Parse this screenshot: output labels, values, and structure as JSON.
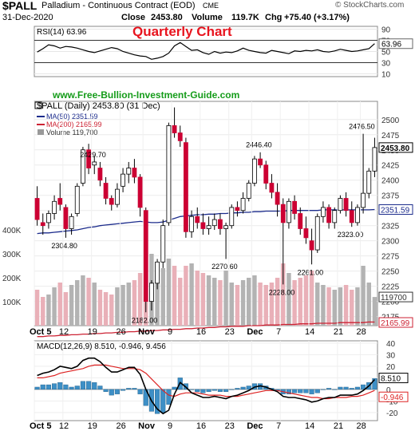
{
  "header": {
    "symbol": "$PALL",
    "name": "Palladium - Continuous Contract (EOD)",
    "exchange": "CME",
    "date": "31-Dec-2020",
    "close_label": "Close",
    "close": "2453.80",
    "volume_label": "Volume",
    "volume": "119.7K",
    "chg_label": "Chg",
    "chg": "+75.40 (+3.17%)",
    "credit": "© StockCharts.com"
  },
  "overlay": {
    "title": "Quarterly Chart",
    "website": "www.Free-Bullion-Investment-Guide.com"
  },
  "colors": {
    "up_candle": "#ffffff",
    "down_candle": "#cc0033",
    "ma50": "#1c2c8c",
    "ma200": "#cc2233",
    "title_red": "#e8141e",
    "website_green": "#159c1a",
    "volume_up": "#b3b3b3",
    "volume_down": "#e9b0b8",
    "macd_hist": "#3d8fc6",
    "macd_line": "#000000",
    "signal_line": "#dd2222"
  },
  "chart_data": {
    "type": "candlestick",
    "x_ticks": [
      "Oct 5",
      "12",
      "19",
      "26",
      "Nov",
      "9",
      "16",
      "23",
      "Dec",
      "7",
      "14",
      "21",
      "28"
    ],
    "rsi": {
      "legend": "RSI(14) 63.96",
      "y_ticks": [
        "90",
        "70",
        "50",
        "30",
        "10"
      ],
      "last_value": "63.96",
      "levels": [
        30,
        70
      ],
      "values": [
        49,
        55,
        62,
        60,
        56,
        59,
        58,
        56,
        53,
        50,
        48,
        51,
        54,
        57,
        55,
        50,
        47,
        44,
        42,
        41,
        36,
        38,
        41,
        47,
        60,
        66,
        59,
        52,
        53,
        48,
        45,
        50,
        47,
        49,
        48,
        51,
        56,
        52,
        50,
        48,
        47,
        52,
        50,
        48,
        46,
        51,
        50,
        52,
        51,
        53,
        50,
        49,
        51,
        54,
        52,
        50,
        51,
        53,
        55,
        63.96
      ]
    },
    "price": {
      "legend": "$PALL (Daily) 2453.80 (31 Dec)",
      "ma50_label": "MA(50) 2351.59",
      "ma200_label": "MA(200) 2165.99",
      "volume_label": "Volume 119,700",
      "y_ticks": [
        "2500",
        "2475",
        "2450",
        "2425",
        "2400",
        "2375",
        "2350",
        "2325",
        "2300",
        "2275",
        "2250",
        "2225",
        "2200",
        "2175"
      ],
      "ylim": [
        2160,
        2530
      ],
      "last_price_tag": "2453.80",
      "ma50_tag": "2351.59",
      "volume_tag": "119700",
      "ma200_tag": "2165.99",
      "volume_ticks": [
        "400K",
        "300K",
        "200K",
        "100K"
      ],
      "annotations": [
        {
          "label": "2304.80",
          "value": 2304.8,
          "index": 5
        },
        {
          "label": "2429.70",
          "value": 2429.7,
          "index": 10
        },
        {
          "label": "2182.00",
          "value": 2182.0,
          "index": 19
        },
        {
          "label": "2270.60",
          "value": 2270.6,
          "index": 33
        },
        {
          "label": "2446.40",
          "value": 2446.4,
          "index": 39
        },
        {
          "label": "2228.00",
          "value": 2228.0,
          "index": 43
        },
        {
          "label": "2261.00",
          "value": 2261.0,
          "index": 48
        },
        {
          "label": "2476.50",
          "value": 2476.5,
          "index": 57
        },
        {
          "label": "2323.00",
          "value": 2323.0,
          "index": 55
        }
      ],
      "ohlc": [
        [
          2370,
          2390,
          2325,
          2335
        ],
        [
          2330,
          2345,
          2310,
          2325
        ],
        [
          2330,
          2350,
          2320,
          2345
        ],
        [
          2345,
          2375,
          2335,
          2365
        ],
        [
          2370,
          2395,
          2350,
          2360
        ],
        [
          2355,
          2360,
          2305,
          2320
        ],
        [
          2320,
          2345,
          2310,
          2340
        ],
        [
          2345,
          2395,
          2340,
          2390
        ],
        [
          2395,
          2455,
          2390,
          2450
        ],
        [
          2450,
          2460,
          2410,
          2420
        ],
        [
          2425,
          2440,
          2410,
          2430
        ],
        [
          2420,
          2430,
          2390,
          2400
        ],
        [
          2395,
          2405,
          2360,
          2370
        ],
        [
          2370,
          2375,
          2350,
          2360
        ],
        [
          2360,
          2395,
          2355,
          2385
        ],
        [
          2390,
          2420,
          2380,
          2410
        ],
        [
          2410,
          2430,
          2395,
          2420
        ],
        [
          2420,
          2435,
          2395,
          2405
        ],
        [
          2405,
          2410,
          2340,
          2355
        ],
        [
          2350,
          2355,
          2182,
          2200
        ],
        [
          2200,
          2235,
          2185,
          2230
        ],
        [
          2230,
          2270,
          2220,
          2265
        ],
        [
          2265,
          2335,
          2255,
          2325
        ],
        [
          2330,
          2495,
          2325,
          2490
        ],
        [
          2490,
          2520,
          2470,
          2478
        ],
        [
          2478,
          2490,
          2455,
          2465
        ],
        [
          2462,
          2470,
          2305,
          2315
        ],
        [
          2315,
          2350,
          2305,
          2340
        ],
        [
          2340,
          2355,
          2320,
          2330
        ],
        [
          2330,
          2345,
          2310,
          2320
        ],
        [
          2320,
          2340,
          2310,
          2325
        ],
        [
          2325,
          2345,
          2318,
          2335
        ],
        [
          2335,
          2345,
          2310,
          2320
        ],
        [
          2320,
          2330,
          2270,
          2325
        ],
        [
          2325,
          2360,
          2320,
          2355
        ],
        [
          2355,
          2365,
          2340,
          2350
        ],
        [
          2350,
          2380,
          2345,
          2370
        ],
        [
          2370,
          2400,
          2365,
          2395
        ],
        [
          2395,
          2440,
          2390,
          2435
        ],
        [
          2435,
          2446,
          2420,
          2425
        ],
        [
          2425,
          2432,
          2385,
          2395
        ],
        [
          2395,
          2410,
          2370,
          2380
        ],
        [
          2380,
          2395,
          2340,
          2360
        ],
        [
          2360,
          2370,
          2228,
          2330
        ],
        [
          2330,
          2370,
          2320,
          2365
        ],
        [
          2365,
          2375,
          2335,
          2345
        ],
        [
          2345,
          2355,
          2310,
          2320
        ],
        [
          2320,
          2340,
          2295,
          2305
        ],
        [
          2300,
          2320,
          2261,
          2285
        ],
        [
          2285,
          2345,
          2280,
          2340
        ],
        [
          2340,
          2365,
          2330,
          2355
        ],
        [
          2355,
          2360,
          2320,
          2330
        ],
        [
          2330,
          2355,
          2320,
          2350
        ],
        [
          2350,
          2375,
          2345,
          2370
        ],
        [
          2370,
          2380,
          2340,
          2350
        ],
        [
          2350,
          2365,
          2323,
          2330
        ],
        [
          2330,
          2360,
          2325,
          2355
        ],
        [
          2355,
          2476.5,
          2345,
          2378.4
        ],
        [
          2378.4,
          2420,
          2370,
          2415
        ],
        [
          2415,
          2470,
          2405,
          2453.8
        ]
      ],
      "ma50": [
        2312,
        2313,
        2313,
        2314,
        2315,
        2316,
        2317,
        2318,
        2320,
        2322,
        2323,
        2325,
        2326,
        2327,
        2328,
        2329,
        2330,
        2331,
        2332,
        2331,
        2330,
        2330,
        2331,
        2334,
        2337,
        2340,
        2341,
        2342,
        2343,
        2343,
        2344,
        2344,
        2345,
        2345,
        2346,
        2346,
        2347,
        2347,
        2348,
        2348,
        2349,
        2349,
        2349,
        2349,
        2350,
        2350,
        2350,
        2350,
        2350,
        2350,
        2351,
        2351,
        2351,
        2351,
        2351,
        2351,
        2351,
        2351,
        2351,
        2351.59
      ],
      "ma200": [
        2142,
        2142,
        2143,
        2143,
        2144,
        2144,
        2145,
        2145,
        2146,
        2146,
        2147,
        2147,
        2148,
        2148,
        2149,
        2149,
        2150,
        2150,
        2151,
        2151,
        2152,
        2152,
        2153,
        2153,
        2154,
        2154,
        2155,
        2155,
        2156,
        2156,
        2157,
        2157,
        2158,
        2158,
        2159,
        2159,
        2159,
        2160,
        2160,
        2160,
        2161,
        2161,
        2161,
        2162,
        2162,
        2162,
        2163,
        2163,
        2163,
        2164,
        2164,
        2164,
        2164,
        2165,
        2165,
        2165,
        2165,
        2165,
        2166,
        2165.99
      ],
      "volume": [
        150,
        120,
        130,
        160,
        180,
        140,
        170,
        190,
        210,
        200,
        180,
        150,
        140,
        130,
        160,
        170,
        180,
        190,
        220,
        330,
        300,
        260,
        240,
        280,
        250,
        200,
        250,
        260,
        230,
        220,
        210,
        200,
        190,
        230,
        180,
        170,
        190,
        200,
        210,
        180,
        170,
        180,
        200,
        260,
        220,
        190,
        200,
        210,
        230,
        180,
        170,
        160,
        150,
        160,
        170,
        150,
        160,
        250,
        180,
        119.7
      ]
    },
    "macd": {
      "legend": "MACD(12,26,9) 8.510, -0.946, 9.456",
      "y_ticks": [
        "40",
        "30",
        "20",
        "10",
        "0",
        "-10",
        "-20"
      ],
      "ylim": [
        -27,
        42
      ],
      "macd_tag": "8.510",
      "signal_tag": "-0.946",
      "macd_line": [
        12,
        14,
        15,
        17,
        20,
        19,
        18,
        20,
        25,
        27,
        27,
        24,
        19,
        15,
        15,
        17,
        19,
        19,
        13,
        0,
        -10,
        -17,
        -21,
        -18,
        -4,
        6,
        2,
        -3,
        -5,
        -7,
        -7,
        -6,
        -7,
        -8,
        -6,
        -5,
        -3,
        -1,
        2,
        3,
        2,
        0,
        -2,
        -6,
        -7,
        -7,
        -8,
        -9,
        -11,
        -10,
        -8,
        -7,
        -7,
        -5,
        -5,
        -5,
        -4,
        -1,
        3,
        8.51
      ],
      "signal_line": [
        10,
        10,
        11,
        12,
        14,
        15,
        16,
        17,
        18,
        20,
        21,
        21,
        21,
        20,
        19,
        18,
        18,
        18,
        17,
        14,
        9,
        4,
        -1,
        -5,
        -6,
        -4,
        -3,
        -3,
        -3,
        -4,
        -5,
        -5,
        -5,
        -6,
        -6,
        -6,
        -5,
        -4,
        -3,
        -2,
        -1,
        -1,
        -1,
        -2,
        -3,
        -4,
        -5,
        -6,
        -7,
        -7,
        -8,
        -8,
        -7,
        -7,
        -7,
        -6,
        -6,
        -5,
        -3,
        -0.946
      ],
      "histogram": [
        2,
        4,
        4,
        5,
        6,
        4,
        2,
        3,
        7,
        7,
        6,
        3,
        -2,
        -5,
        -4,
        -1,
        1,
        1,
        -4,
        -14,
        -19,
        -21,
        -20,
        -13,
        2,
        10,
        5,
        0,
        -2,
        -3,
        -2,
        -1,
        -2,
        -2,
        0,
        1,
        2,
        3,
        5,
        5,
        3,
        1,
        -1,
        -4,
        -4,
        -3,
        -3,
        -3,
        -4,
        -3,
        0,
        1,
        0,
        2,
        2,
        1,
        2,
        4,
        6,
        9.456
      ]
    }
  }
}
